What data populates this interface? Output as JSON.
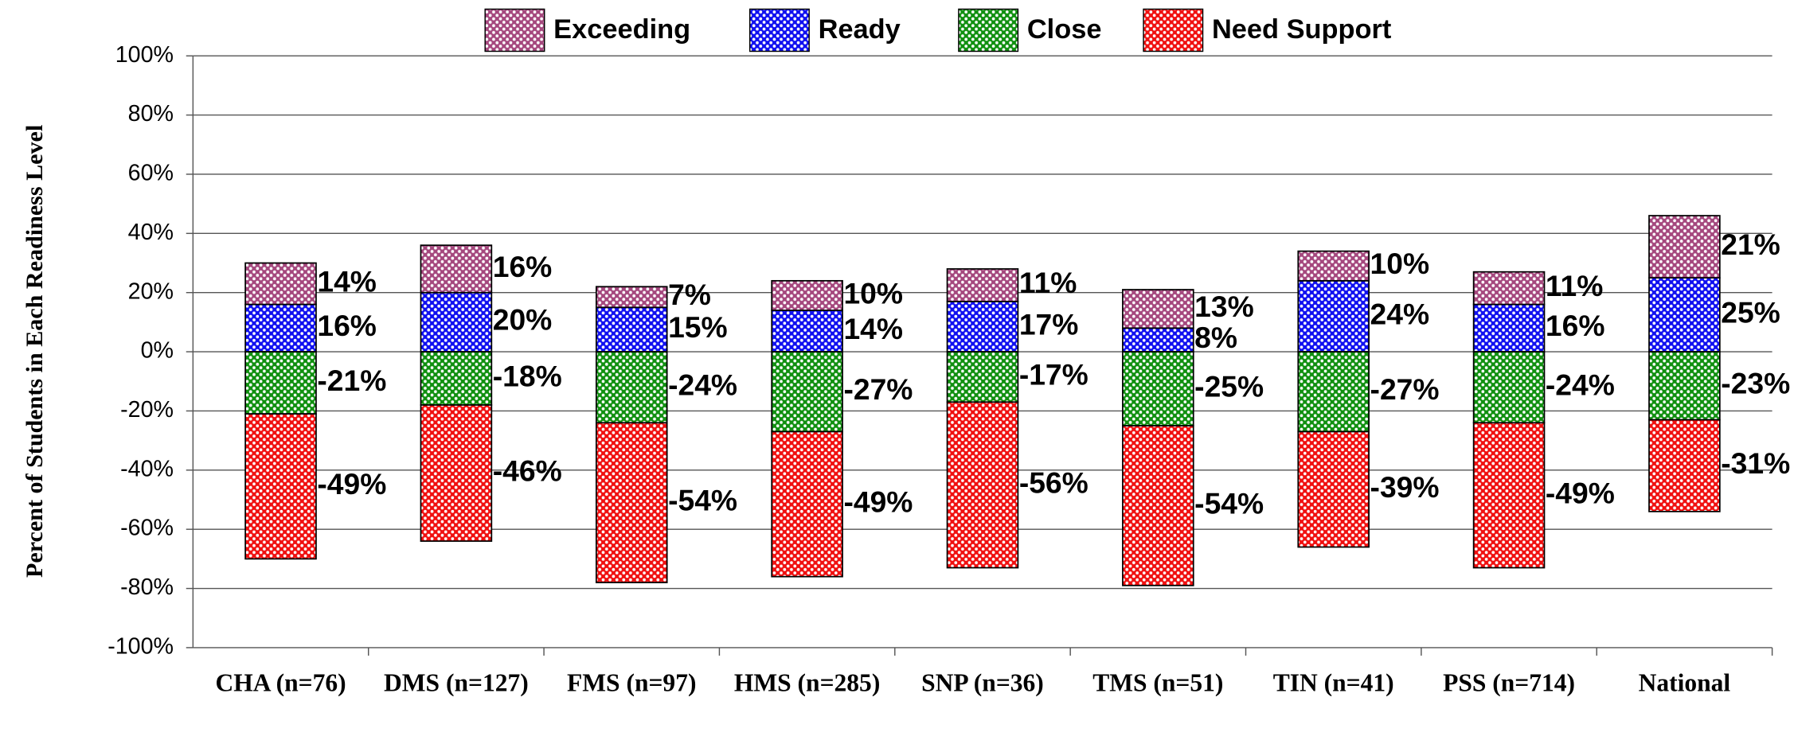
{
  "chart_data": {
    "type": "diverging_stacked_bar",
    "ylabel": "Percent of Students in Each Readiness Level",
    "categories": [
      "CHA (n=76)",
      "DMS (n=127)",
      "FMS (n=97)",
      "HMS (n=285)",
      "SNP (n=36)",
      "TMS (n=51)",
      "TIN (n=41)",
      "PSS (n=714)",
      "National"
    ],
    "series": [
      {
        "name": "Exceeding",
        "color": "#a5487e",
        "values": [
          14,
          16,
          7,
          10,
          11,
          13,
          10,
          11,
          21
        ],
        "value_labels": [
          "14%",
          "16%",
          "7%",
          "10%",
          "11%",
          "13%",
          "10%",
          "11%",
          "21%"
        ]
      },
      {
        "name": "Ready",
        "color": "#1010f0",
        "values": [
          16,
          20,
          15,
          14,
          17,
          8,
          24,
          16,
          25
        ],
        "value_labels": [
          "16%",
          "20%",
          "15%",
          "14%",
          "17%",
          "8%",
          "24%",
          "16%",
          "25%"
        ]
      },
      {
        "name": "Close",
        "color": "#109010",
        "values": [
          -21,
          -18,
          -24,
          -27,
          -17,
          -25,
          -27,
          -24,
          -23
        ],
        "value_labels": [
          "-21%",
          "-18%",
          "-24%",
          "-27%",
          "-17%",
          "-25%",
          "-27%",
          "-24%",
          "-23%"
        ]
      },
      {
        "name": "Need Support",
        "color": "#f01010",
        "values": [
          -49,
          -46,
          -54,
          -49,
          -56,
          -54,
          -39,
          -49,
          -31
        ],
        "value_labels": [
          "-49%",
          "-46%",
          "-54%",
          "-49%",
          "-56%",
          "-54%",
          "-39%",
          "-49%",
          "-31%"
        ]
      }
    ],
    "ylim": [
      -100,
      100
    ],
    "yticks": [
      {
        "value": -100,
        "label": "-100%"
      },
      {
        "value": -80,
        "label": "-80%"
      },
      {
        "value": -60,
        "label": "-60%"
      },
      {
        "value": -40,
        "label": "-40%"
      },
      {
        "value": -20,
        "label": "-20%"
      },
      {
        "value": 0,
        "label": "0%"
      },
      {
        "value": 20,
        "label": "20%"
      },
      {
        "value": 40,
        "label": "40%"
      },
      {
        "value": 60,
        "label": "60%"
      },
      {
        "value": 80,
        "label": "80%"
      },
      {
        "value": 100,
        "label": "100%"
      }
    ],
    "grid": true,
    "legend": "top"
  }
}
